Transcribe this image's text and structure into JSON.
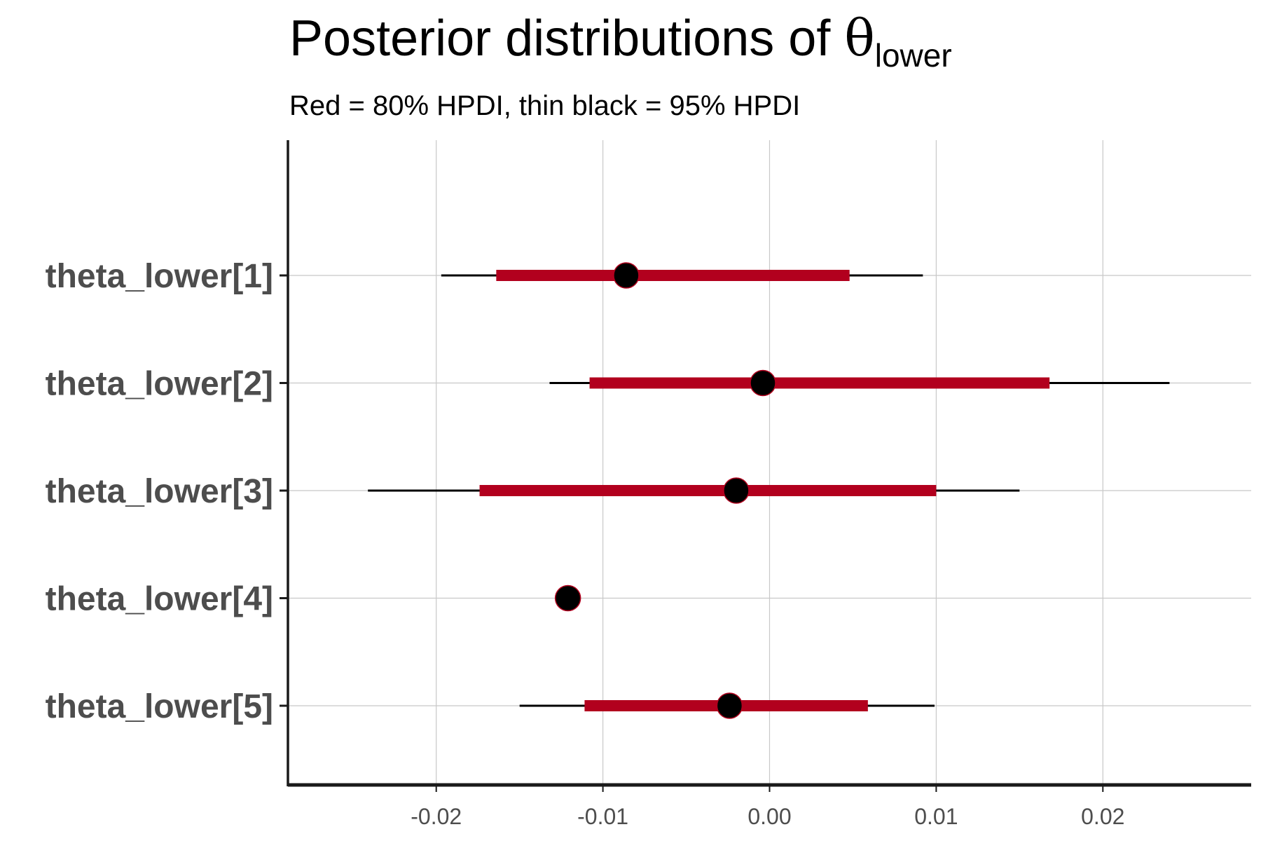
{
  "chart_data": {
    "type": "interval",
    "title": "Posterior distributions of ",
    "title_symbol": "θ",
    "title_subscript": "lower",
    "subtitle": "Red = 80% HPDI, thin black = 95% HPDI",
    "xlabel": "",
    "ylabel": "",
    "categories": [
      "theta_lower[1]",
      "theta_lower[2]",
      "theta_lower[3]",
      "theta_lower[4]",
      "theta_lower[5]"
    ],
    "xlim": [
      -0.0289,
      0.0289
    ],
    "xticks": [
      -0.02,
      -0.01,
      0.0,
      0.01,
      0.02
    ],
    "xtick_labels": [
      "-0.02",
      "-0.01",
      "0.00",
      "0.01",
      "0.02"
    ],
    "grid": true,
    "series": [
      {
        "point": -0.0086,
        "hpdi80": [
          -0.0164,
          0.0048
        ],
        "hpdi95": [
          -0.0197,
          0.0092
        ]
      },
      {
        "point": -0.0004,
        "hpdi80": [
          -0.0108,
          0.0168
        ],
        "hpdi95": [
          -0.0132,
          0.024
        ]
      },
      {
        "point": -0.002,
        "hpdi80": [
          -0.0174,
          0.01
        ],
        "hpdi95": [
          -0.0241,
          0.015
        ]
      },
      {
        "point": -0.0121,
        "hpdi80": [
          -0.0121,
          -0.0121
        ],
        "hpdi95": [
          -0.0121,
          -0.0121
        ]
      },
      {
        "point": -0.0024,
        "hpdi80": [
          -0.0111,
          0.0059
        ],
        "hpdi95": [
          -0.015,
          0.0099
        ]
      }
    ],
    "colors": {
      "hpdi80": "#b2001e",
      "hpdi95": "#000000",
      "point_fill": "#000000",
      "point_stroke": "#b2001e",
      "grid": "#c8c8c8",
      "axis": "#1a1a1a"
    }
  }
}
